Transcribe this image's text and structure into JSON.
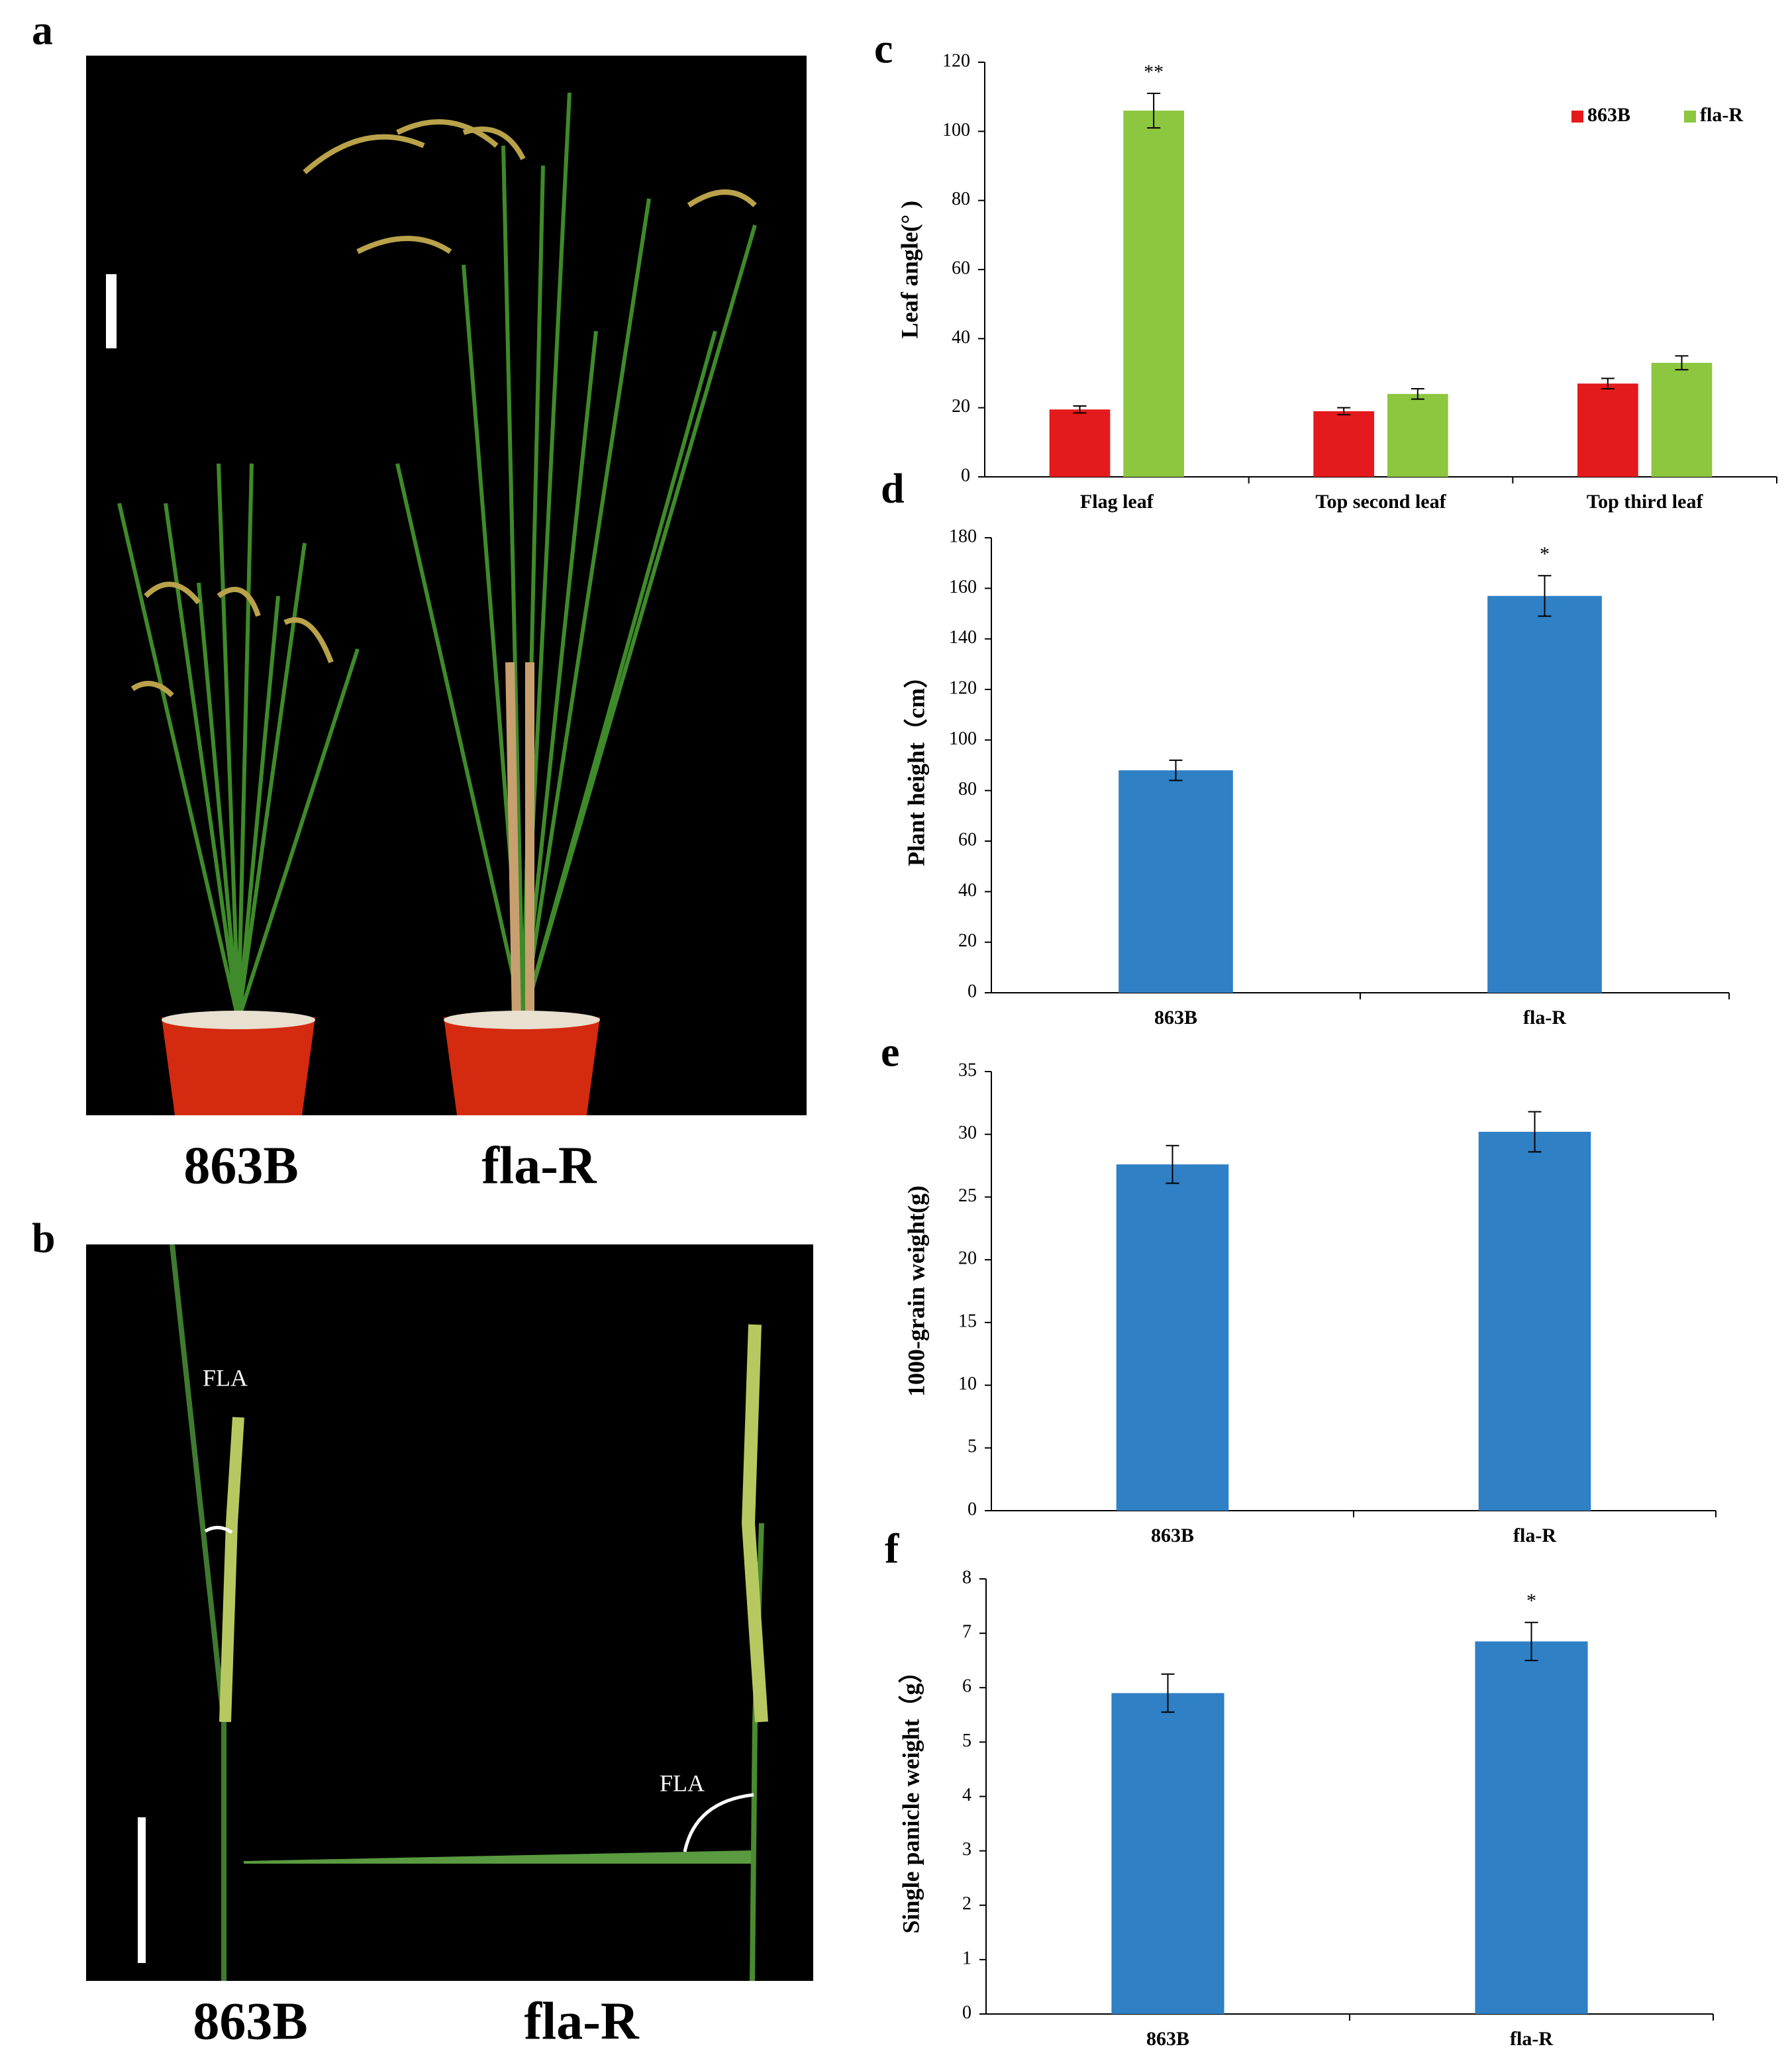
{
  "figure": {
    "panels": [
      {
        "label": "a",
        "captions": [
          "863B",
          "fla-R"
        ]
      },
      {
        "label": "b",
        "captions": [
          "863B",
          "fla-R"
        ],
        "annotations": [
          "FLA",
          "FLA"
        ]
      }
    ]
  },
  "chart_data": [
    {
      "type": "bar",
      "panel_label": "c",
      "ylabel": "Leaf angle(°  )",
      "categories": [
        "Flag leaf",
        "Top second leaf",
        "Top third leaf"
      ],
      "series": [
        {
          "name": "863B",
          "color": "#e41a1c",
          "values": [
            19.5,
            19,
            27
          ],
          "errors": [
            1,
            1,
            1.5
          ],
          "significance": [
            null,
            null,
            null
          ]
        },
        {
          "name": "fla-R",
          "color": "#8dc63f",
          "values": [
            106,
            24,
            33
          ],
          "errors": [
            5,
            1.5,
            2
          ],
          "significance": [
            "**",
            null,
            null
          ]
        }
      ],
      "ylim": [
        0,
        120
      ],
      "yticks": [
        0,
        20,
        40,
        60,
        80,
        100,
        120
      ],
      "legend": "top-right"
    },
    {
      "type": "bar",
      "panel_label": "d",
      "ylabel": "Plant height（cm）",
      "categories": [
        "863B",
        "fla-R"
      ],
      "series": [
        {
          "color": "#2f80c5",
          "values": [
            88,
            157
          ],
          "errors": [
            4,
            8
          ],
          "significance": [
            null,
            "*"
          ]
        }
      ],
      "ylim": [
        0,
        180
      ],
      "yticks": [
        0,
        20,
        40,
        60,
        80,
        100,
        120,
        140,
        160,
        180
      ]
    },
    {
      "type": "bar",
      "panel_label": "e",
      "ylabel": "1000-grain weight(g)",
      "categories": [
        "863B",
        "fla-R"
      ],
      "series": [
        {
          "color": "#2f80c5",
          "values": [
            27.6,
            30.2
          ],
          "errors": [
            1.5,
            1.6
          ],
          "significance": [
            null,
            null
          ]
        }
      ],
      "ylim": [
        0,
        35
      ],
      "yticks": [
        0,
        5,
        10,
        15,
        20,
        25,
        30,
        35
      ]
    },
    {
      "type": "bar",
      "panel_label": "f",
      "ylabel": "Single panicle weight（g）",
      "categories": [
        "863B",
        "fla-R"
      ],
      "series": [
        {
          "color": "#2f80c5",
          "values": [
            5.9,
            6.85
          ],
          "errors": [
            0.35,
            0.35
          ],
          "significance": [
            null,
            "*"
          ]
        }
      ],
      "ylim": [
        0,
        8
      ],
      "yticks": [
        0,
        1,
        2,
        3,
        4,
        5,
        6,
        7,
        8
      ]
    }
  ]
}
